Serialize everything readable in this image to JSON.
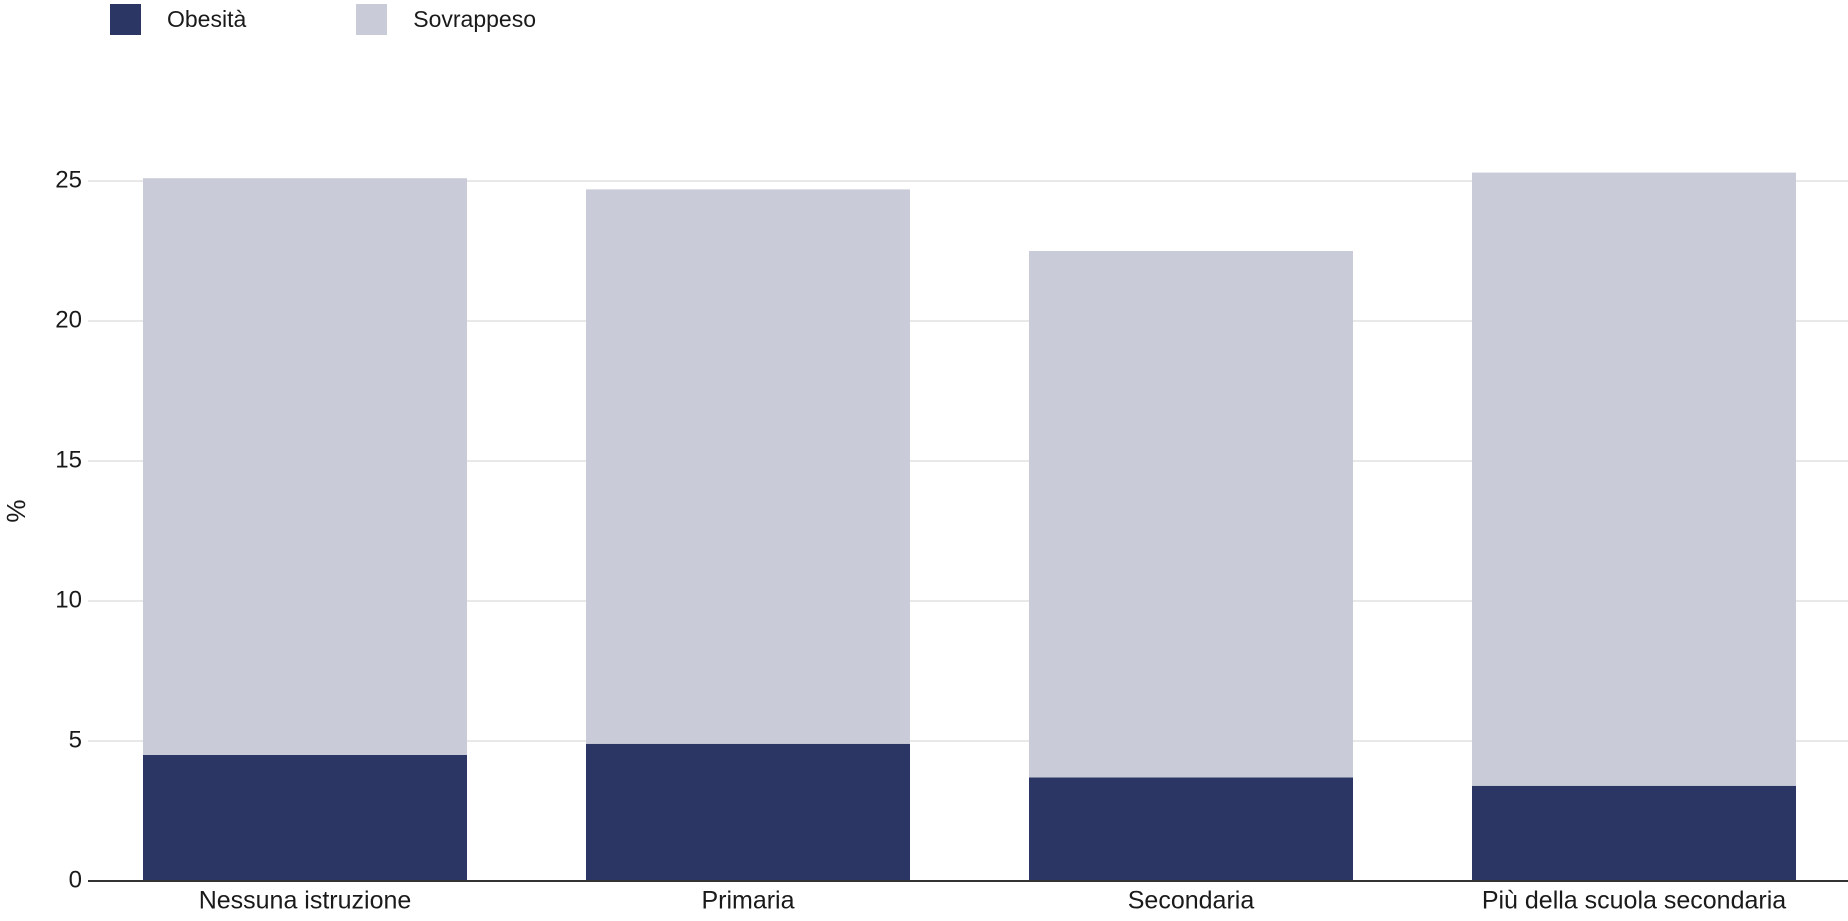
{
  "chart_data": {
    "type": "bar",
    "stacked": true,
    "categories": [
      "Nessuna istruzione",
      "Primaria",
      "Secondaria",
      "Più della scuola secondaria"
    ],
    "series": [
      {
        "name": "Obesità",
        "color": "#2b3664",
        "values": [
          4.5,
          4.9,
          3.7,
          3.4
        ]
      },
      {
        "name": "Sovrappeso",
        "color": "#c9ccd8",
        "values": [
          20.6,
          19.8,
          18.8,
          21.9
        ]
      }
    ],
    "ylabel": "%",
    "xlabel": "",
    "ylim": [
      0,
      25
    ],
    "yticks": [
      0,
      5,
      10,
      15,
      20,
      25
    ],
    "grid": true,
    "legend_position": "top-left"
  }
}
